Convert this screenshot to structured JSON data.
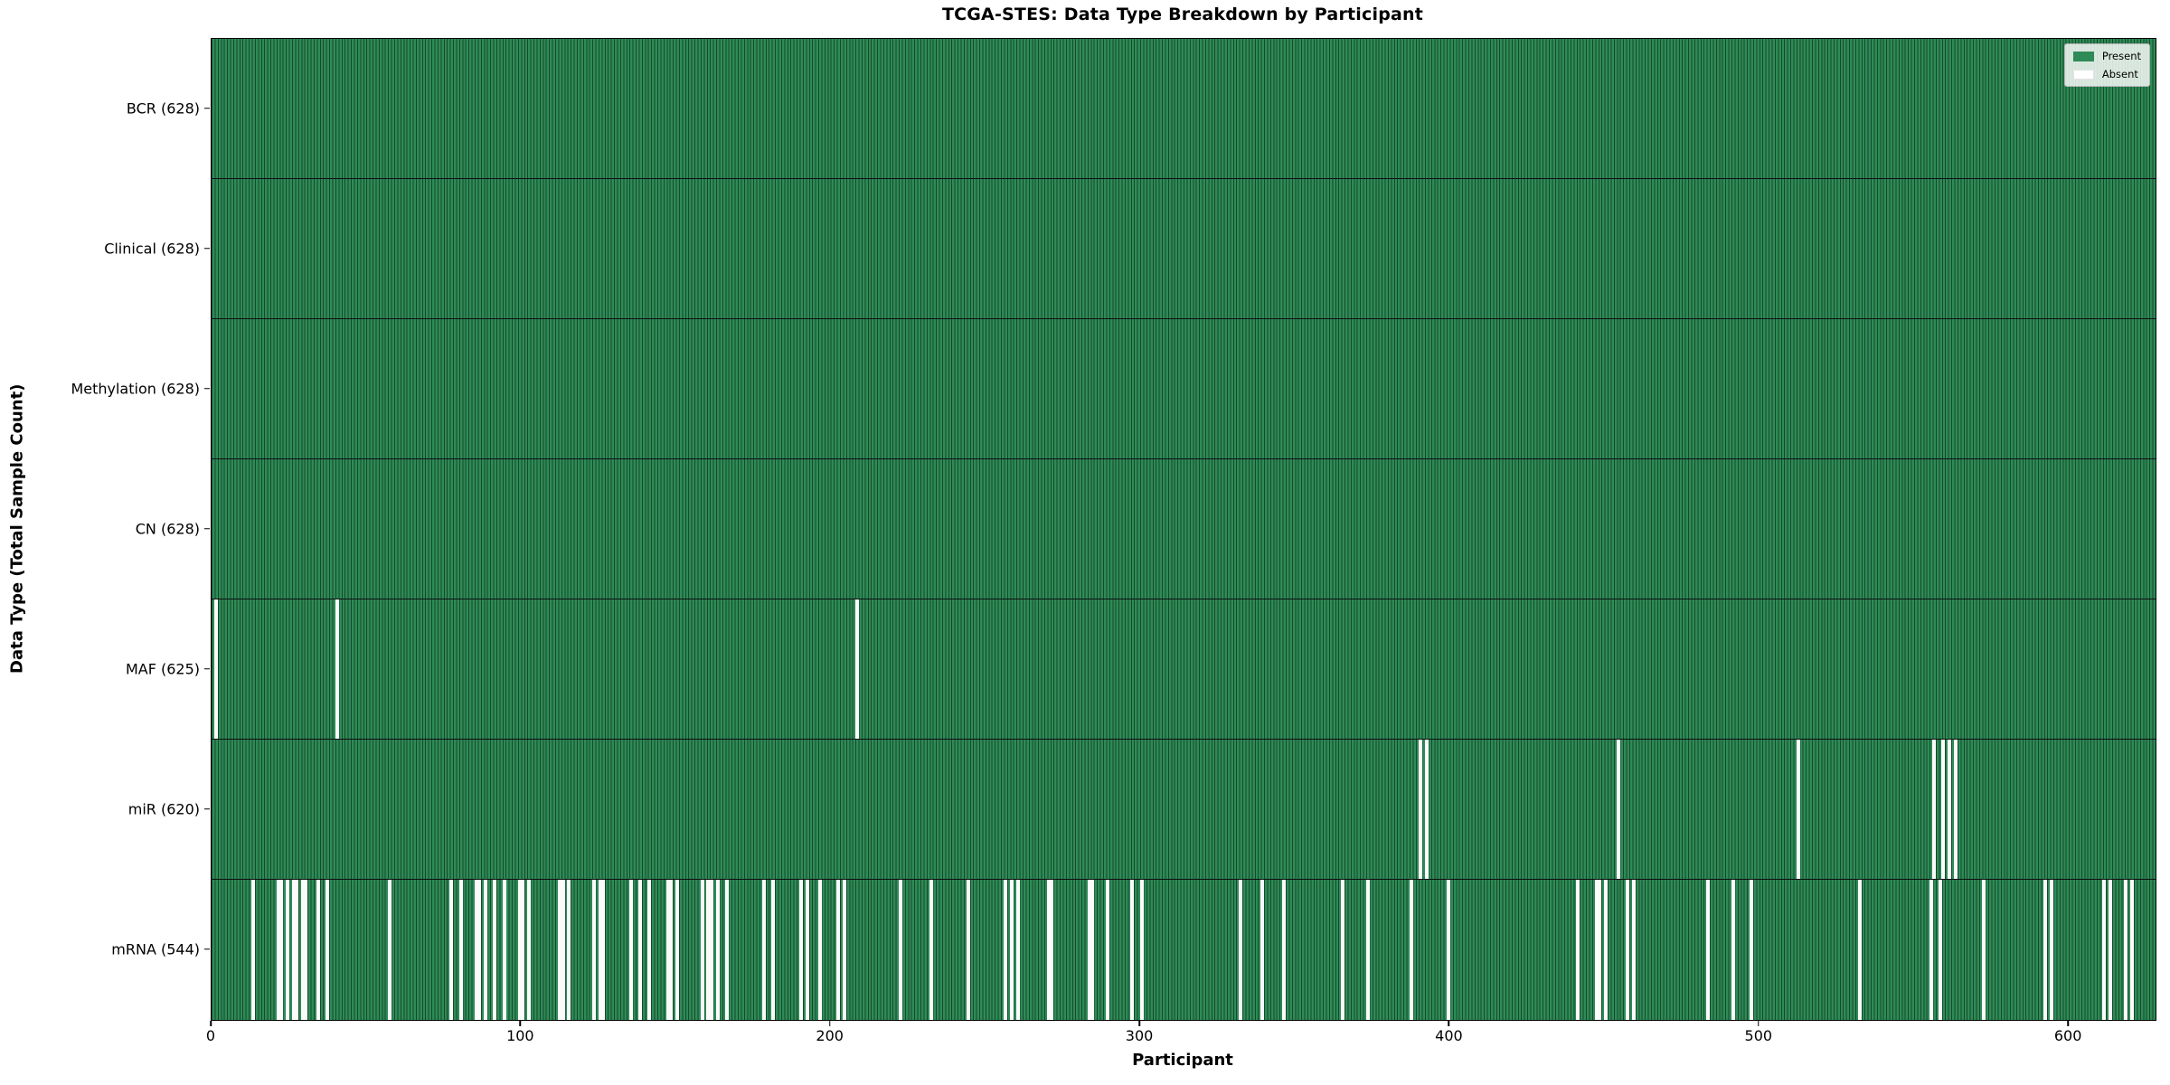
{
  "chart_data": {
    "type": "heatmap",
    "title": "TCGA-STES: Data Type Breakdown by Participant",
    "xlabel": "Participant",
    "ylabel": "Data Type (Total Sample Count)",
    "x_axis": {
      "min": 0,
      "max": 628,
      "ticks": [
        0,
        100,
        200,
        300,
        400,
        500,
        600
      ]
    },
    "grid": "row-separators-only",
    "colors": {
      "present": "#2e8b57",
      "present_edge": "#17492b",
      "absent": "#fbfbfb",
      "frame": "#000000"
    },
    "legend": {
      "position": "upper-right",
      "entries": [
        {
          "label": "Present",
          "color": "#2e8b57"
        },
        {
          "label": "Absent",
          "color": "#ffffff"
        }
      ]
    },
    "total_participants": 628,
    "rows": [
      {
        "name": "BCR",
        "label": "BCR (628)",
        "present_count": 628,
        "absent_participants": []
      },
      {
        "name": "Clinical",
        "label": "Clinical (628)",
        "present_count": 628,
        "absent_participants": []
      },
      {
        "name": "Methylation",
        "label": "Methylation (628)",
        "present_count": 628,
        "absent_participants": []
      },
      {
        "name": "CN",
        "label": "CN (628)",
        "present_count": 628,
        "absent_participants": []
      },
      {
        "name": "MAF",
        "label": "MAF (625)",
        "present_count": 625,
        "absent_participants": [
          1,
          40,
          208
        ]
      },
      {
        "name": "miR",
        "label": "miR (620)",
        "present_count": 620,
        "absent_participants": [
          390,
          392,
          454,
          512,
          556,
          559,
          561,
          563
        ]
      },
      {
        "name": "mRNA",
        "label": "mRNA (544)",
        "present_count": 544,
        "absent_participants": [
          13,
          21,
          22,
          24,
          26,
          27,
          29,
          30,
          34,
          37,
          57,
          77,
          80,
          85,
          86,
          88,
          91,
          94,
          99,
          100,
          102,
          112,
          113,
          115,
          123,
          125,
          126,
          135,
          138,
          141,
          147,
          148,
          150,
          158,
          160,
          161,
          163,
          166,
          178,
          181,
          190,
          192,
          196,
          202,
          204,
          222,
          232,
          244,
          256,
          258,
          260,
          270,
          271,
          283,
          284,
          289,
          297,
          300,
          332,
          339,
          346,
          365,
          373,
          387,
          399,
          441,
          447,
          448,
          450,
          457,
          459,
          483,
          491,
          497,
          532,
          555,
          558,
          572,
          592,
          594,
          611,
          613,
          618,
          620
        ]
      }
    ]
  }
}
